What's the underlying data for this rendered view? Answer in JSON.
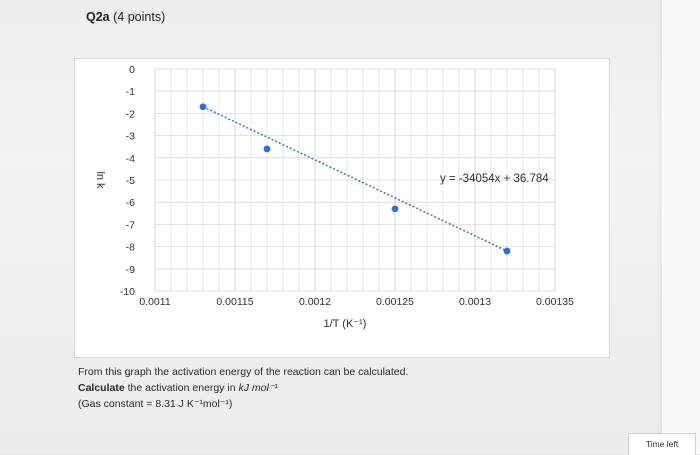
{
  "header": {
    "title": "Q2a",
    "points": "(4 points)"
  },
  "chart_data": {
    "type": "scatter",
    "title": "",
    "xlabel": "1/T (K⁻¹)",
    "ylabel": "ln k",
    "xlim": [
      0.0011,
      0.00135
    ],
    "ylim": [
      -10,
      0
    ],
    "x_ticks": [
      "0.0011",
      "0.00115",
      "0.0012",
      "0.00125",
      "0.0013",
      "0.00135"
    ],
    "y_ticks": [
      "0",
      "-1",
      "-2",
      "-3",
      "-4",
      "-5",
      "-6",
      "-7",
      "-8",
      "-9",
      "-10"
    ],
    "grid": true,
    "points": [
      {
        "x": 0.00113,
        "y": -1.7
      },
      {
        "x": 0.00117,
        "y": -3.6
      },
      {
        "x": 0.00125,
        "y": -6.3
      },
      {
        "x": 0.00132,
        "y": -8.2
      }
    ],
    "trendline": {
      "type": "linear-dotted",
      "equation": "y = -34054x + 36.784"
    },
    "colors": {
      "points": "#2f6fcf",
      "trendline": "#4a7bc9",
      "grid": "#d9d9d9"
    }
  },
  "question": {
    "line1": "From this graph the activation energy of the reaction can be calculated.",
    "line2_bold": "Calculate",
    "line2_rest": " the activation energy in ",
    "line2_unit": "kJ mol⁻¹",
    "line3": "(Gas constant = 8.31 J K⁻¹mol⁻¹)"
  },
  "timer": {
    "label": "Time left"
  }
}
